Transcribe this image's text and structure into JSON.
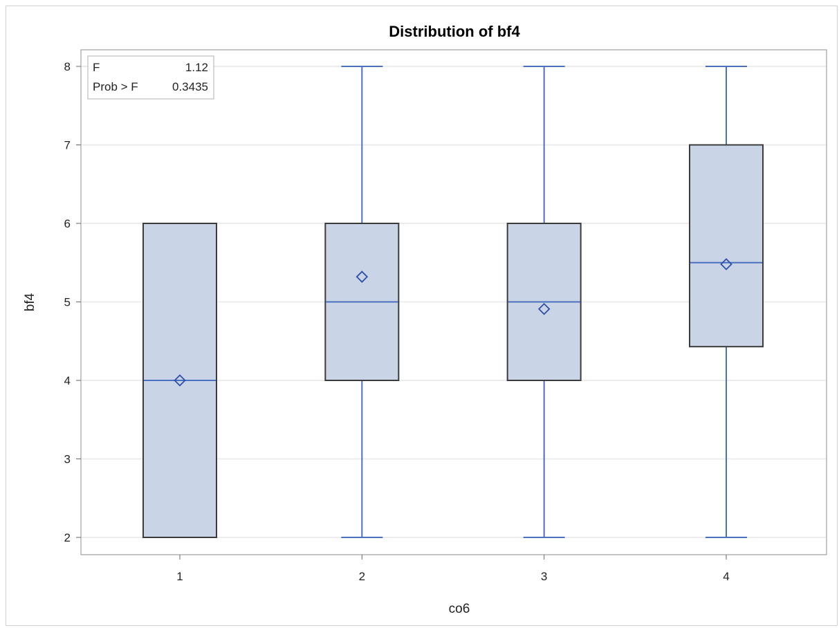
{
  "chart_data": {
    "type": "box",
    "title": "Distribution of bf4",
    "xlabel": "co6",
    "ylabel": "bf4",
    "ylim": [
      2,
      8
    ],
    "yticks": [
      "2",
      "3",
      "4",
      "5",
      "6",
      "7",
      "8"
    ],
    "grid": true,
    "categories": [
      "1",
      "2",
      "3",
      "4"
    ],
    "boxes": [
      {
        "category": "1",
        "min": 2,
        "q1": 2,
        "median": 4,
        "q3": 6,
        "max": 6,
        "mean": 4.0
      },
      {
        "category": "2",
        "min": 2,
        "q1": 4,
        "median": 5,
        "q3": 6,
        "max": 8,
        "mean": 5.32
      },
      {
        "category": "3",
        "min": 2,
        "q1": 4,
        "median": 5,
        "q3": 6,
        "max": 8,
        "mean": 4.91
      },
      {
        "category": "4",
        "min": 2,
        "q1": 4.43,
        "median": 5.5,
        "q3": 7,
        "max": 8,
        "mean": 5.48
      }
    ],
    "stats_inset": {
      "position": "top-left",
      "rows": [
        {
          "label": "F",
          "value": "1.12"
        },
        {
          "label": "Prob > F",
          "value": "0.3435"
        }
      ]
    },
    "colors": {
      "box_fill": "#c9d5e6",
      "box_edge": "#3b3b3b",
      "whisker": "#4a6fbf",
      "median": "#4a6fbf",
      "mean_marker": "#2e4fa8",
      "grid": "#ececec"
    }
  }
}
